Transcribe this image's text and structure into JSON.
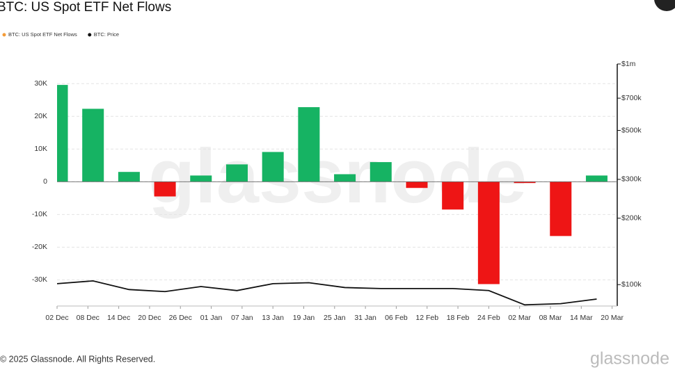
{
  "chart_data": {
    "type": "bar_line",
    "title": "BTC: US Spot ETF Net Flows",
    "watermark": "glassnode",
    "footer": "© 2025 Glassnode. All Rights Reserved.",
    "logo": "glassnode",
    "x": [
      0,
      7,
      14,
      21,
      28,
      35,
      42,
      49,
      56,
      63,
      70,
      77,
      84,
      91,
      98,
      105
    ],
    "xlim": [
      0,
      109
    ],
    "xticks": [
      {
        "value": 0,
        "label": "02 Dec"
      },
      {
        "value": 6,
        "label": "08 Dec"
      },
      {
        "value": 12,
        "label": "14 Dec"
      },
      {
        "value": 18,
        "label": "20 Dec"
      },
      {
        "value": 24,
        "label": "26 Dec"
      },
      {
        "value": 30,
        "label": "01 Jan"
      },
      {
        "value": 36,
        "label": "07 Jan"
      },
      {
        "value": 42,
        "label": "13 Jan"
      },
      {
        "value": 48,
        "label": "19 Jan"
      },
      {
        "value": 54,
        "label": "25 Jan"
      },
      {
        "value": 60,
        "label": "31 Jan"
      },
      {
        "value": 66,
        "label": "06 Feb"
      },
      {
        "value": 72,
        "label": "12 Feb"
      },
      {
        "value": 78,
        "label": "18 Feb"
      },
      {
        "value": 84,
        "label": "24 Feb"
      },
      {
        "value": 90,
        "label": "02 Mar"
      },
      {
        "value": 96,
        "label": "08 Mar"
      },
      {
        "value": 102,
        "label": "14 Mar"
      },
      {
        "value": 108,
        "label": "20 Mar"
      }
    ],
    "ylim": [
      -38000,
      36000
    ],
    "yticks": [
      {
        "value": 30000,
        "label": "30K"
      },
      {
        "value": 20000,
        "label": "20K"
      },
      {
        "value": 10000,
        "label": "10K"
      },
      0,
      {
        "value": -10000,
        "label": "-10K"
      },
      {
        "value": -20000,
        "label": "-20K"
      },
      {
        "value": -30000,
        "label": "-30K"
      }
    ],
    "y2lim": [
      80000,
      1000000
    ],
    "y2log": true,
    "y2ticks": [
      {
        "value": 100000,
        "label": "$100k"
      },
      {
        "value": 200000,
        "label": "$200k"
      },
      {
        "value": 300000,
        "label": "$300k"
      },
      {
        "value": 500000,
        "label": "$500k"
      },
      {
        "value": 700000,
        "label": "$700k"
      },
      {
        "value": 1000000,
        "label": "$1m"
      }
    ],
    "grid": true,
    "series": [
      {
        "name": "BTC: US Spot ETF Net Flows",
        "color": "#f39c38",
        "positive_color": "#16b363",
        "negative_color": "#ee1515",
        "values": [
          29600,
          22300,
          3000,
          -4500,
          1900,
          5300,
          9100,
          22800,
          2300,
          6000,
          -1900,
          -8500,
          -31300,
          -400,
          -16600,
          1900
        ]
      },
      {
        "name": "BTC: Price",
        "color": "#111111",
        "axis": "y2",
        "values": [
          101000,
          104000,
          95000,
          93000,
          98000,
          94000,
          101000,
          102000,
          97000,
          96000,
          96000,
          96000,
          94000,
          81000,
          82000,
          86000
        ]
      }
    ]
  }
}
